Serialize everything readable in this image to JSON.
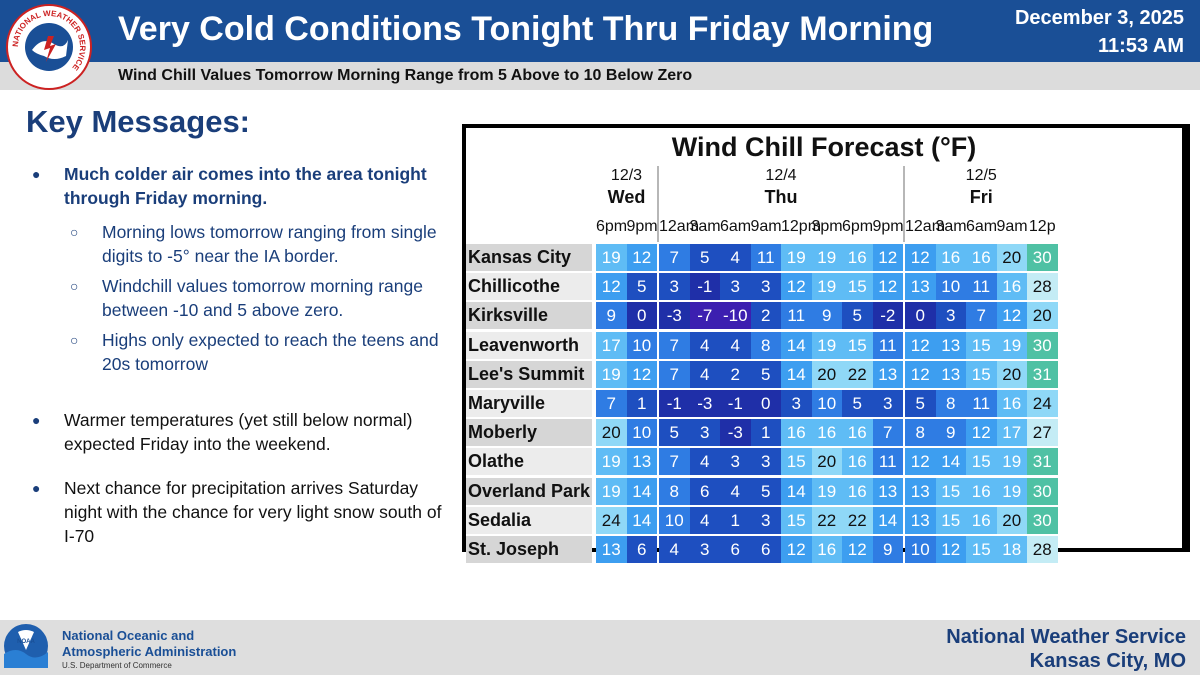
{
  "header": {
    "title": "Very Cold Conditions Tonight Thru Friday Morning",
    "subtitle": "Wind Chill Values Tomorrow Morning Range from 5 Above to 10 Below Zero",
    "date": "December 3, 2025",
    "time": "11:53 AM",
    "logo_text": "NATIONAL WEATHER SERVICE"
  },
  "key_messages": {
    "title": "Key Messages:",
    "bullets": [
      {
        "text": "Much colder air comes into the area tonight through Friday morning.",
        "sub": [
          "Morning lows tomorrow ranging from single digits to -5° near the IA border.",
          "Windchill values tomorrow morning range between -10 and 5 above zero.",
          "Highs only expected to reach the teens and 20s tomorrow"
        ]
      },
      {
        "text": "Warmer temperatures (yet still below normal) expected Friday into the weekend."
      },
      {
        "text": "Next chance for precipitation arrives Saturday night with the chance for very light snow south of I-70"
      }
    ]
  },
  "table": {
    "title": "Wind Chill Forecast (°F)",
    "days": [
      {
        "date": "12/3",
        "name": "Wed"
      },
      {
        "date": "12/4",
        "name": "Thu"
      },
      {
        "date": "12/5",
        "name": "Fri"
      }
    ],
    "hours": [
      "6pm",
      "9pm",
      "12am",
      "3am",
      "6am",
      "9am",
      "12pm",
      "3pm",
      "6pm",
      "9pm",
      "12am",
      "3am",
      "6am",
      "9am",
      "12p"
    ],
    "rows": [
      {
        "city": "Kansas City",
        "values": [
          19,
          12,
          7,
          5,
          4,
          11,
          19,
          19,
          16,
          12,
          12,
          16,
          16,
          20,
          30
        ]
      },
      {
        "city": "Chillicothe",
        "values": [
          12,
          5,
          3,
          -1,
          3,
          3,
          12,
          19,
          15,
          12,
          13,
          10,
          11,
          16,
          28
        ]
      },
      {
        "city": "Kirksville",
        "values": [
          9,
          0,
          -3,
          -7,
          -10,
          2,
          11,
          9,
          5,
          -2,
          0,
          3,
          7,
          12,
          20
        ]
      },
      {
        "city": "Leavenworth",
        "values": [
          17,
          10,
          7,
          4,
          4,
          8,
          14,
          19,
          15,
          11,
          12,
          13,
          15,
          19,
          30
        ]
      },
      {
        "city": "Lee's Summit",
        "values": [
          19,
          12,
          7,
          4,
          2,
          5,
          14,
          20,
          22,
          13,
          12,
          13,
          15,
          20,
          31
        ]
      },
      {
        "city": "Maryville",
        "values": [
          7,
          1,
          -1,
          -3,
          -1,
          0,
          3,
          10,
          5,
          3,
          5,
          8,
          11,
          16,
          24
        ]
      },
      {
        "city": "Moberly",
        "values": [
          20,
          10,
          5,
          3,
          -3,
          1,
          16,
          16,
          16,
          7,
          8,
          9,
          12,
          17,
          27
        ]
      },
      {
        "city": "Olathe",
        "values": [
          19,
          13,
          7,
          4,
          3,
          3,
          15,
          20,
          16,
          11,
          12,
          14,
          15,
          19,
          31
        ]
      },
      {
        "city": "Overland Park",
        "values": [
          19,
          14,
          8,
          6,
          4,
          5,
          14,
          19,
          16,
          13,
          13,
          15,
          16,
          19,
          30
        ]
      },
      {
        "city": "Sedalia",
        "values": [
          24,
          14,
          10,
          4,
          1,
          3,
          15,
          22,
          22,
          14,
          13,
          15,
          16,
          20,
          30
        ]
      },
      {
        "city": "St. Joseph",
        "values": [
          13,
          6,
          4,
          3,
          6,
          6,
          12,
          16,
          12,
          9,
          10,
          12,
          15,
          18,
          28
        ]
      }
    ],
    "colors": {
      "below_minus5": "#3c1fb0",
      "minus5_to_0": "#1f2fa8",
      "1_to_6": "#1e4fc0",
      "7_to_11": "#2f7ce3",
      "12_to_14": "#3d9ef0",
      "15_to_19": "#5fbcf5",
      "20_to_24": "#8fd8f7",
      "25_to_29": "#c4ecf5",
      "30_plus": "#4fc1a4"
    }
  },
  "footer": {
    "noaa_line1": "National Oceanic and",
    "noaa_line2": "Atmospheric Administration",
    "noaa_dept": "U.S. Department of Commerce",
    "noaa_logo_text": "NOAA",
    "office_line1": "National Weather Service",
    "office_line2": "Kansas City, MO"
  }
}
